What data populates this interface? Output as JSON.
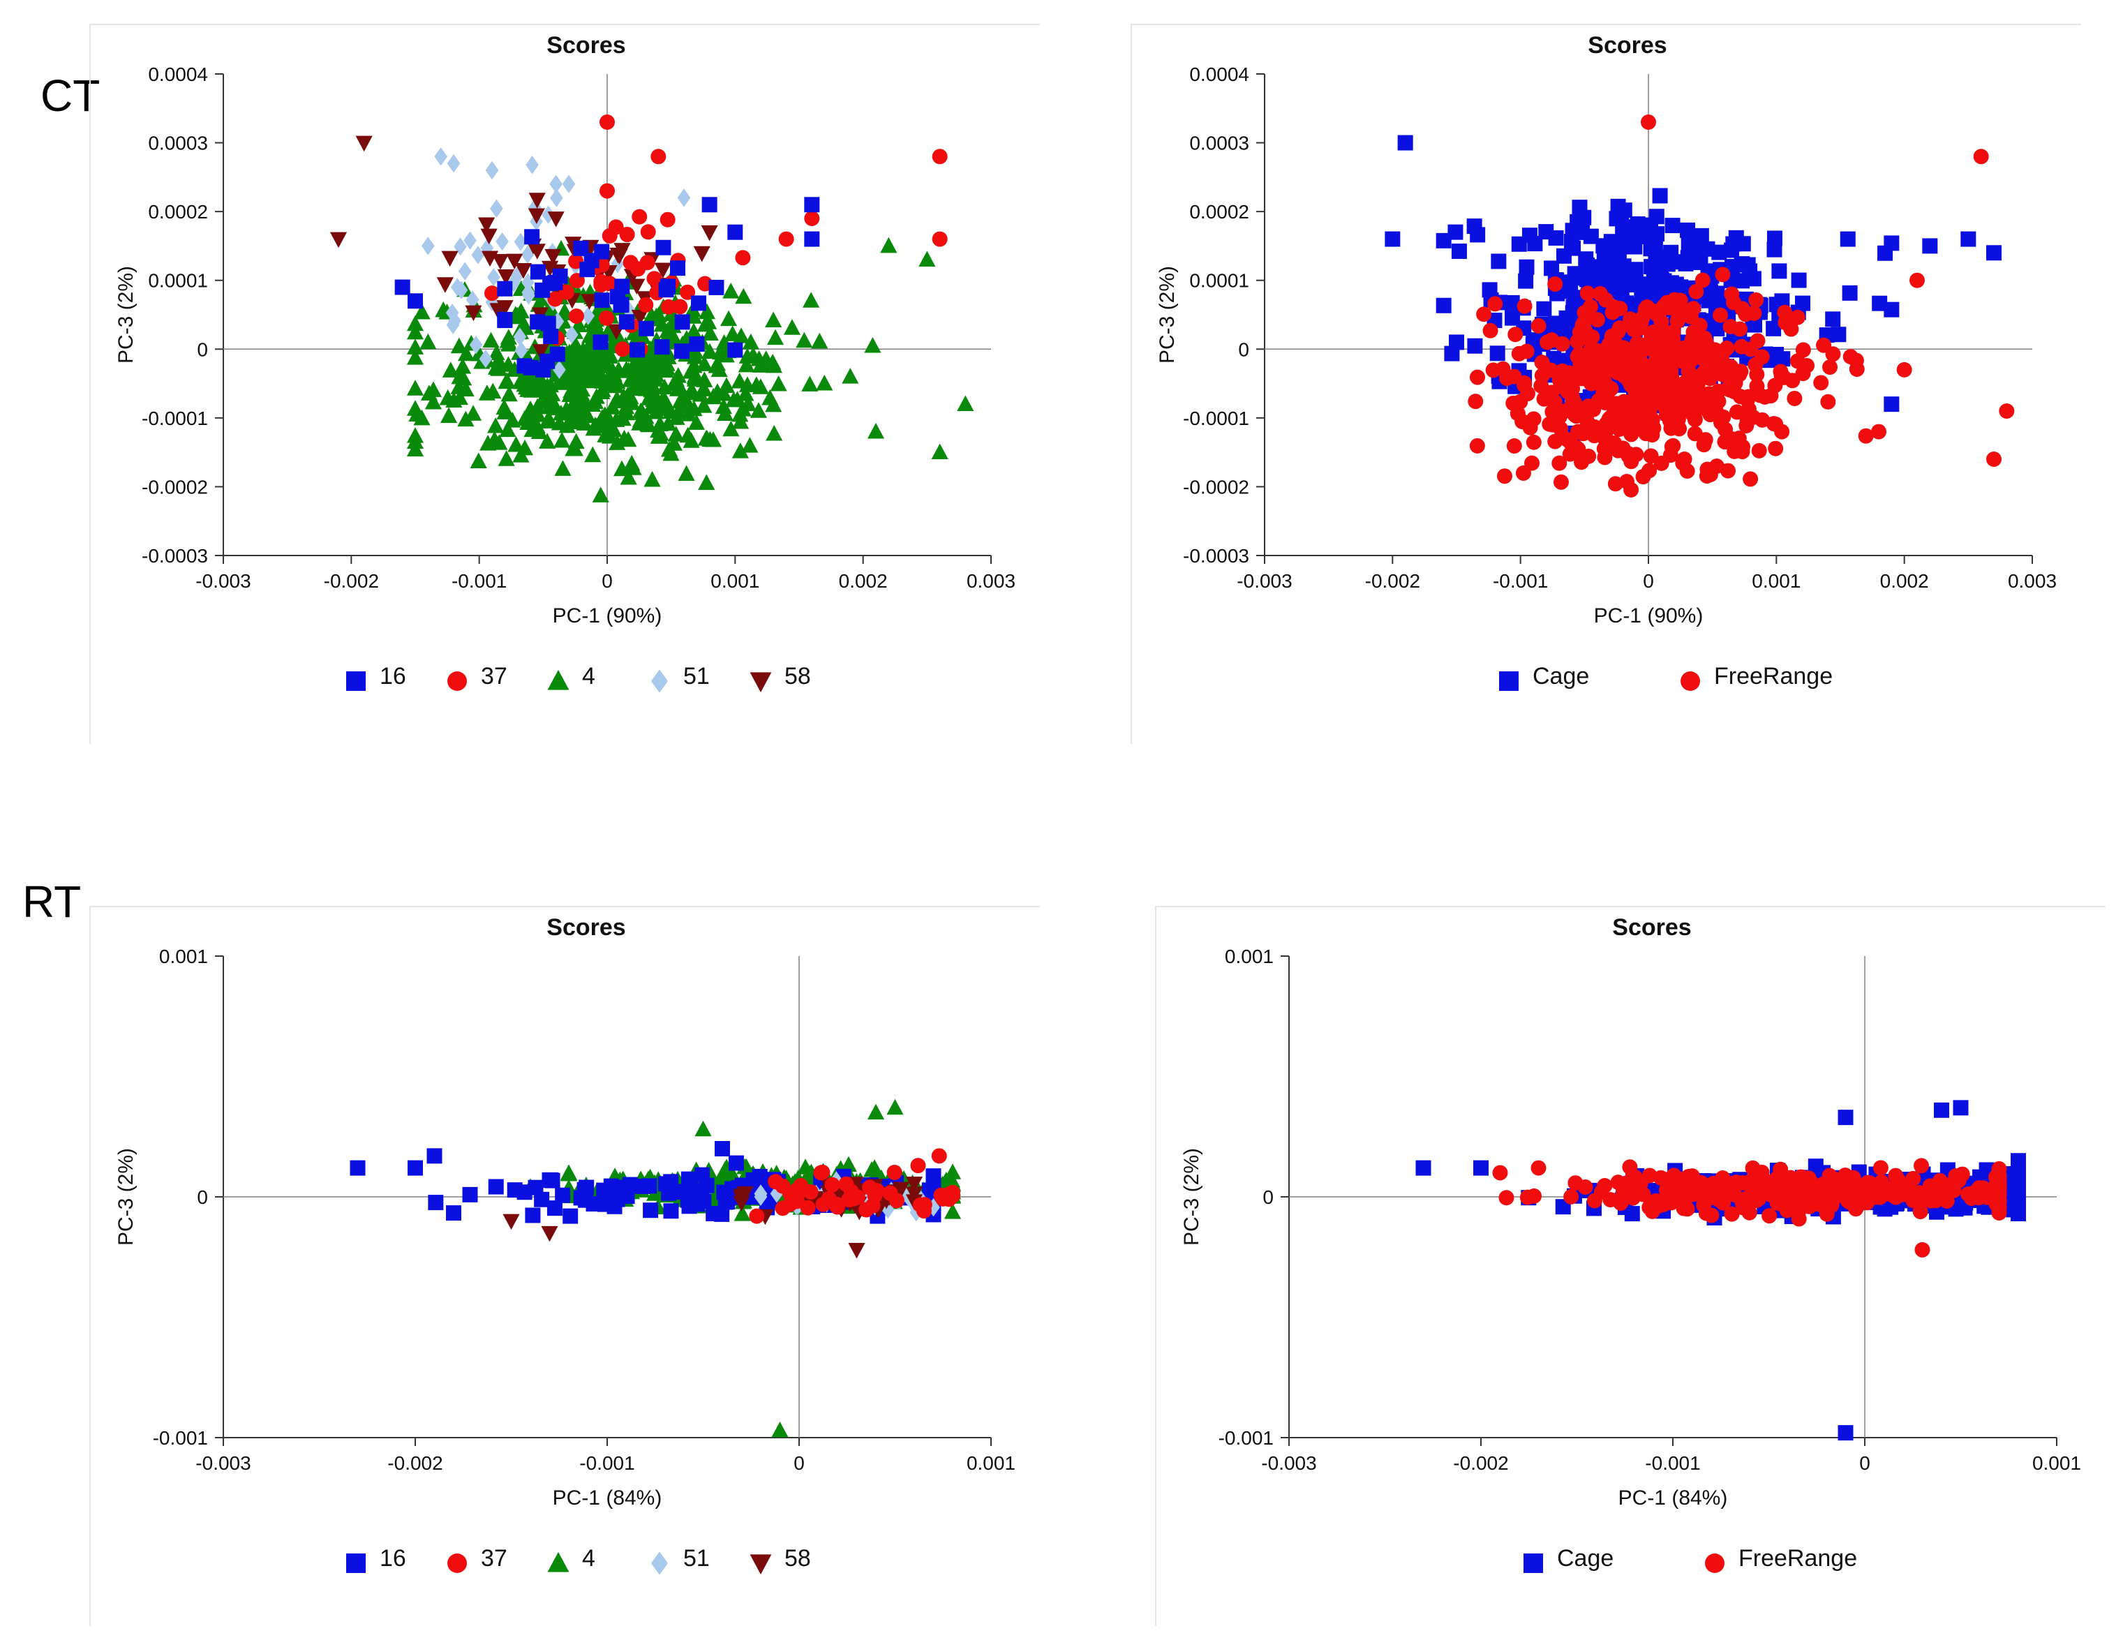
{
  "row_labels": {
    "ct": "CT",
    "rt": "RT"
  },
  "colors": {
    "blue": "#0a10e0",
    "red": "#f00d0d",
    "green": "#0a8a0a",
    "lightblue": "#a8c8ec",
    "darkred": "#7a0b0b",
    "axis": "#808080"
  },
  "chart_data": [
    {
      "id": "ct_groups",
      "type": "scatter",
      "title": "Scores",
      "xlabel": "PC-1 (90%)",
      "ylabel": "PC-3 (2%)",
      "xlim": [
        -0.003,
        0.003
      ],
      "ylim": [
        -0.0003,
        0.0004
      ],
      "xticks": [
        "-0.003",
        "-0.002",
        "-0.001",
        "0",
        "0.001",
        "0.002",
        "0.003"
      ],
      "yticks": [
        "-0.0003",
        "-0.0002",
        "-0.0001",
        "0",
        "0.0001",
        "0.0002",
        "0.0003",
        "0.0004"
      ],
      "legend": [
        {
          "name": "16",
          "marker": "square",
          "color": "#0a10e0"
        },
        {
          "name": "37",
          "marker": "circle",
          "color": "#f00d0d"
        },
        {
          "name": "4",
          "marker": "triangle",
          "color": "#0a8a0a"
        },
        {
          "name": "51",
          "marker": "diamond",
          "color": "#a8c8ec"
        },
        {
          "name": "58",
          "marker": "tridown",
          "color": "#7a0b0b"
        }
      ],
      "series": [
        {
          "name": "4",
          "marker": "triangle",
          "color": "#0a8a0a",
          "cloud": {
            "n": 560,
            "cx": 0.0,
            "sx": 0.00065,
            "cy": -3.5e-05,
            "sy": 6e-05,
            "xmin": -0.0015,
            "xmax": 0.0029,
            "ymin": -0.00022,
            "ymax": 0.00024
          },
          "points": [
            [
              0.0026,
              -0.00015
            ],
            [
              0.0028,
              -8e-05
            ],
            [
              0.0022,
              0.00015
            ],
            [
              0.0019,
              -4e-05
            ],
            [
              0.0021,
              -0.00012
            ],
            [
              -0.0014,
              1e-05
            ],
            [
              0.0025,
              0.00013
            ]
          ]
        },
        {
          "name": "51",
          "marker": "diamond",
          "color": "#a8c8ec",
          "cloud": {
            "n": 45,
            "cx": -0.0006,
            "sx": 0.0004,
            "cy": 0.0001,
            "sy": 6e-05,
            "xmin": -0.0015,
            "xmax": 0.0007,
            "ymin": -3e-05,
            "ymax": 0.00028
          },
          "points": [
            [
              -0.0013,
              0.00028
            ],
            [
              -0.0012,
              0.00027
            ],
            [
              -0.0009,
              0.00026
            ],
            [
              -0.0004,
              0.00024
            ],
            [
              -0.0003,
              0.00024
            ],
            [
              -0.0014,
              0.00015
            ],
            [
              0.0006,
              0.00022
            ]
          ]
        },
        {
          "name": "58",
          "marker": "tridown",
          "color": "#7a0b0b",
          "cloud": {
            "n": 45,
            "cx": -0.0003,
            "sx": 0.0005,
            "cy": 0.00011,
            "sy": 5e-05,
            "xmin": -0.0013,
            "xmax": 0.0012,
            "ymin": -4e-05,
            "ymax": 0.00022
          },
          "points": [
            [
              -0.0019,
              0.0003
            ],
            [
              -0.0021,
              0.00016
            ],
            [
              -0.0004,
              0.00019
            ],
            [
              0.0008,
              0.00017
            ]
          ]
        },
        {
          "name": "37",
          "marker": "circle",
          "color": "#f00d0d",
          "cloud": {
            "n": 35,
            "cx": 0.0001,
            "sx": 0.00045,
            "cy": 0.00011,
            "sy": 5e-05,
            "xmin": -0.0009,
            "xmax": 0.0012,
            "ymin": 0.0,
            "ymax": 0.00022
          },
          "points": [
            [
              0.0,
              0.00033
            ],
            [
              0.0004,
              0.00028
            ],
            [
              0.0026,
              0.00028
            ],
            [
              0.0026,
              0.00016
            ],
            [
              0.0016,
              0.00019
            ],
            [
              0.0014,
              0.00016
            ],
            [
              0.0,
              0.00023
            ]
          ]
        },
        {
          "name": "16",
          "marker": "square",
          "color": "#0a10e0",
          "cloud": {
            "n": 40,
            "cx": -0.0001,
            "sx": 0.0005,
            "cy": 5e-05,
            "sy": 5e-05,
            "xmin": -0.0008,
            "xmax": 0.001,
            "ymin": -4e-05,
            "ymax": 0.00018
          },
          "points": [
            [
              -0.0016,
              9e-05
            ],
            [
              -0.0015,
              7e-05
            ],
            [
              0.0016,
              0.00021
            ],
            [
              0.0016,
              0.00016
            ],
            [
              0.0008,
              0.00021
            ],
            [
              0.001,
              0.00017
            ],
            [
              -0.0005,
              -3e-05
            ]
          ]
        }
      ]
    },
    {
      "id": "ct_housing",
      "type": "scatter",
      "title": "Scores",
      "xlabel": "PC-1 (90%)",
      "ylabel": "PC-3 (2%)",
      "xlim": [
        -0.003,
        0.003
      ],
      "ylim": [
        -0.0003,
        0.0004
      ],
      "xticks": [
        "-0.003",
        "-0.002",
        "-0.001",
        "0",
        "0.001",
        "0.002",
        "0.003"
      ],
      "yticks": [
        "-0.0003",
        "-0.0002",
        "-0.0001",
        "0",
        "0.0001",
        "0.0002",
        "0.0003",
        "0.0004"
      ],
      "legend": [
        {
          "name": "Cage",
          "marker": "square",
          "color": "#0a10e0"
        },
        {
          "name": "FreeRange",
          "marker": "circle",
          "color": "#f00d0d"
        }
      ],
      "series": [
        {
          "name": "Cage",
          "marker": "square",
          "color": "#0a10e0",
          "cloud": {
            "n": 400,
            "cx": 0.0,
            "sx": 0.00065,
            "cy": 6e-05,
            "sy": 7e-05,
            "xmin": -0.0016,
            "xmax": 0.0019,
            "ymin": -0.0002,
            "ymax": 0.00027
          },
          "points": [
            [
              -0.002,
              0.00016
            ],
            [
              -0.0019,
              0.0003
            ],
            [
              0.0027,
              0.00014
            ],
            [
              0.0025,
              0.00016
            ],
            [
              0.0022,
              0.00015
            ],
            [
              0.0019,
              -8e-05
            ],
            [
              -0.0015,
              1e-05
            ]
          ]
        },
        {
          "name": "FreeRange",
          "marker": "circle",
          "color": "#f00d0d",
          "cloud": {
            "n": 520,
            "cx": 0.0,
            "sx": 0.00055,
            "cy": -5e-05,
            "sy": 6e-05,
            "xmin": -0.0014,
            "xmax": 0.0017,
            "ymin": -0.00022,
            "ymax": 0.0002
          },
          "points": [
            [
              0.0,
              0.00033
            ],
            [
              0.0026,
              0.00028
            ],
            [
              0.0028,
              -9e-05
            ],
            [
              0.0027,
              -0.00016
            ],
            [
              0.0021,
              0.0001
            ],
            [
              0.002,
              -3e-05
            ],
            [
              0.0018,
              -0.00012
            ]
          ]
        }
      ]
    },
    {
      "id": "rt_groups",
      "type": "scatter",
      "title": "Scores",
      "xlabel": "PC-1 (84%)",
      "ylabel": "PC-3 (2%)",
      "xlim": [
        -0.003,
        0.001
      ],
      "ylim": [
        -0.001,
        0.001
      ],
      "xticks": [
        "-0.003",
        "-0.002",
        "-0.001",
        "0",
        "0.001"
      ],
      "yticks": [
        "-0.001",
        "0",
        "0.001"
      ],
      "legend": [
        {
          "name": "16",
          "marker": "square",
          "color": "#0a10e0"
        },
        {
          "name": "37",
          "marker": "circle",
          "color": "#f00d0d"
        },
        {
          "name": "4",
          "marker": "triangle",
          "color": "#0a8a0a"
        },
        {
          "name": "51",
          "marker": "diamond",
          "color": "#a8c8ec"
        },
        {
          "name": "58",
          "marker": "tridown",
          "color": "#7a0b0b"
        }
      ],
      "series": [
        {
          "name": "4",
          "marker": "triangle",
          "color": "#0a8a0a",
          "cloud": {
            "n": 320,
            "cx": -0.0001,
            "sx": 0.00045,
            "cy": 4e-05,
            "sy": 4e-05,
            "xmin": -0.0012,
            "xmax": 0.0008,
            "ymin": -8e-05,
            "ymax": 0.00018
          },
          "points": [
            [
              0.0005,
              0.00037
            ],
            [
              0.0004,
              0.00035
            ],
            [
              -0.0005,
              0.00028
            ],
            [
              -0.0001,
              -0.00097
            ],
            [
              -0.0014,
              4e-05
            ]
          ]
        },
        {
          "name": "16",
          "marker": "square",
          "color": "#0a10e0",
          "cloud": {
            "n": 110,
            "cx": -0.0004,
            "sx": 0.0008,
            "cy": 1e-05,
            "sy": 4e-05,
            "xmin": -0.0019,
            "xmax": 0.0007,
            "ymin": -8e-05,
            "ymax": 0.00018
          },
          "points": [
            [
              -0.0023,
              0.00012
            ],
            [
              -0.002,
              0.00012
            ],
            [
              -0.0019,
              0.00017
            ],
            [
              -0.0013,
              7e-05
            ],
            [
              -0.0004,
              0.0002
            ]
          ]
        },
        {
          "name": "51",
          "marker": "diamond",
          "color": "#a8c8ec",
          "cloud": {
            "n": 50,
            "cx": 0.0003,
            "sx": 0.00025,
            "cy": 0.0,
            "sy": 3e-05,
            "xmin": -0.0002,
            "xmax": 0.0007,
            "ymin": -7e-05,
            "ymax": 7e-05
          },
          "points": []
        },
        {
          "name": "58",
          "marker": "tridown",
          "color": "#7a0b0b",
          "cloud": {
            "n": 45,
            "cx": 0.0002,
            "sx": 0.0003,
            "cy": -1e-05,
            "sy": 3e-05,
            "xmin": -0.0003,
            "xmax": 0.0006,
            "ymin": -8e-05,
            "ymax": 6e-05
          },
          "points": [
            [
              -0.0015,
              -0.0001
            ],
            [
              -0.0013,
              -0.00015
            ],
            [
              0.0003,
              -0.00022
            ]
          ]
        },
        {
          "name": "37",
          "marker": "circle",
          "color": "#f00d0d",
          "cloud": {
            "n": 40,
            "cx": 0.0003,
            "sx": 0.00025,
            "cy": 0.0,
            "sy": 4e-05,
            "xmin": -0.0003,
            "xmax": 0.0008,
            "ymin": -8e-05,
            "ymax": 0.00012
          },
          "points": [
            [
              0.00073,
              0.00017
            ],
            [
              0.00062,
              0.00013
            ],
            [
              0.00078,
              1e-05
            ]
          ]
        }
      ]
    },
    {
      "id": "rt_housing",
      "type": "scatter",
      "title": "Scores",
      "xlabel": "PC-1 (84%)",
      "ylabel": "PC-3 (2%)",
      "xlim": [
        -0.003,
        0.001
      ],
      "ylim": [
        -0.001,
        0.001
      ],
      "xticks": [
        "-0.003",
        "-0.002",
        "-0.001",
        "0",
        "0.001"
      ],
      "yticks": [
        "-0.001",
        "0",
        "0.001"
      ],
      "legend": [
        {
          "name": "Cage",
          "marker": "square",
          "color": "#0a10e0"
        },
        {
          "name": "FreeRange",
          "marker": "circle",
          "color": "#f00d0d"
        }
      ],
      "series": [
        {
          "name": "Cage",
          "marker": "square",
          "color": "#0a10e0",
          "cloud": {
            "n": 320,
            "cx": 0.0,
            "sx": 0.0006,
            "cy": 2e-05,
            "sy": 4e-05,
            "xmin": -0.0018,
            "xmax": 0.0008,
            "ymin": -0.00015,
            "ymax": 0.00021
          },
          "points": [
            [
              -0.0023,
              0.00012
            ],
            [
              -0.002,
              0.00012
            ],
            [
              0.0004,
              0.00036
            ],
            [
              0.0005,
              0.00037
            ],
            [
              -0.0001,
              0.00033
            ],
            [
              -0.0001,
              -0.00098
            ],
            [
              0.0008,
              0.00015
            ]
          ]
        },
        {
          "name": "FreeRange",
          "marker": "circle",
          "color": "#f00d0d",
          "cloud": {
            "n": 320,
            "cx": -0.0002,
            "sx": 0.0006,
            "cy": 2e-05,
            "sy": 4e-05,
            "xmin": -0.0019,
            "xmax": 0.0007,
            "ymin": -0.0001,
            "ymax": 0.00016
          },
          "points": [
            [
              -0.0019,
              0.0001
            ],
            [
              -0.0017,
              0.00012
            ],
            [
              0.0003,
              -0.00022
            ]
          ]
        }
      ]
    }
  ]
}
